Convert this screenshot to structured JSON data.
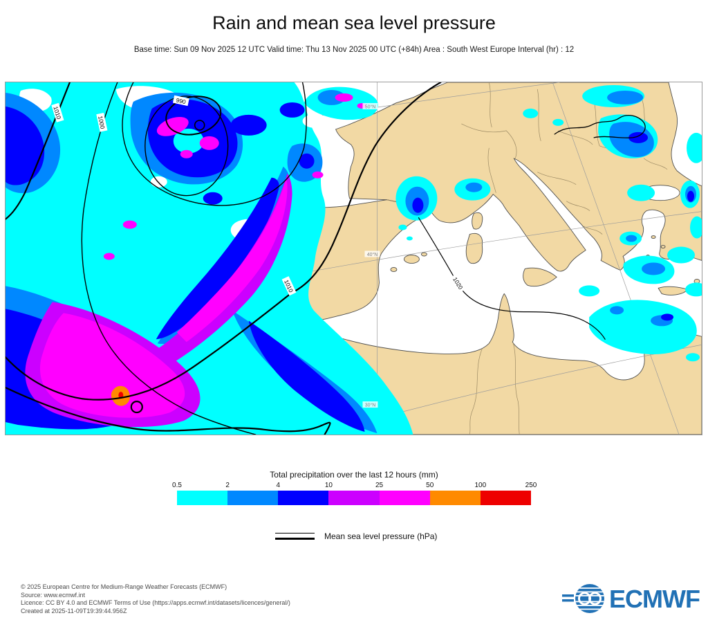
{
  "header": {
    "title": "Rain and mean sea level pressure",
    "subtitle": "Base time: Sun 09 Nov 2025 12 UTC Valid time: Thu 13 Nov 2025 00 UTC (+84h) Area : South West Europe Interval (hr) : 12"
  },
  "chart_data": {
    "type": "heatmap",
    "title": "Rain and mean sea level pressure",
    "base_time": "Sun 09 Nov 2025 12 UTC",
    "valid_time": "Thu 13 Nov 2025 00 UTC (+84h)",
    "area": "South West Europe",
    "interval_hr": 12,
    "precipitation_colorbar": {
      "label": "Total precipitation over the last 12 hours (mm)",
      "bin_edges_mm": [
        0.5,
        2,
        4,
        10,
        25,
        50,
        100,
        250
      ],
      "bin_colors": [
        "#00FFFF",
        "#0088FF",
        "#0000FF",
        "#CC00FF",
        "#FF00FF",
        "#FF8A00",
        "#EE0000"
      ]
    },
    "isolines": {
      "label": "Mean sea level pressure (hPa)",
      "labeled_values_hPa": [
        990,
        1000,
        1010,
        1010,
        1020
      ]
    },
    "graticule_labels": [
      "50°N",
      "40°N",
      "30°N"
    ],
    "depicted_features": [
      {
        "region": "North-east Atlantic west of Iberia",
        "precip_mm": "widespread 10-50 with broad 25-50 band, local maximum 50-250 southwest of Iberia",
        "pressure": "closed low, 990 hPa centre, isobars 990/1000/1010"
      },
      {
        "region": "Bay of Biscay / English Channel",
        "precip_mm": "0.5-10 with patches 10-50"
      },
      {
        "region": "Alps / Gulf of Genoa",
        "precip_mm": "0.5-10"
      },
      {
        "region": "Aegean Sea and sea north of Libya near Crete",
        "precip_mm": "0.5-10"
      },
      {
        "region": "Black Sea region",
        "precip_mm": "0.5-10"
      },
      {
        "region": "Iberia, France, Italy and North Africa interior",
        "precip_mm": "mostly dry, 1020 hPa ridge over western Mediterranean"
      }
    ]
  },
  "legend": {
    "precip_title": "Total precipitation over the last 12 hours (mm)",
    "ticks": [
      "0.5",
      "2",
      "4",
      "10",
      "25",
      "50",
      "100",
      "250"
    ],
    "colors": [
      "#00FFFF",
      "#0088FF",
      "#0000FF",
      "#CC00FF",
      "#FF00FF",
      "#FF8A00",
      "#EE0000"
    ],
    "pressure_label": "Mean sea level pressure (hPa)"
  },
  "map": {
    "isobar_labels": [
      {
        "text": "1010"
      },
      {
        "text": "1000"
      },
      {
        "text": "990"
      },
      {
        "text": "1010"
      },
      {
        "text": "1020"
      }
    ],
    "grid_labels": [
      {
        "text": "50°N"
      },
      {
        "text": "40°N"
      },
      {
        "text": "30°N"
      }
    ]
  },
  "footer": {
    "lines": [
      "© 2025 European Centre for Medium-Range Weather Forecasts (ECMWF)",
      "Source: www.ecmwf.int",
      "Licence: CC BY 4.0 and ECMWF Terms of Use (https://apps.ecmwf.int/datasets/licences/general/)",
      "Created at 2025-11-09T19:39:44.956Z"
    ],
    "logo_text": "ECMWF"
  }
}
